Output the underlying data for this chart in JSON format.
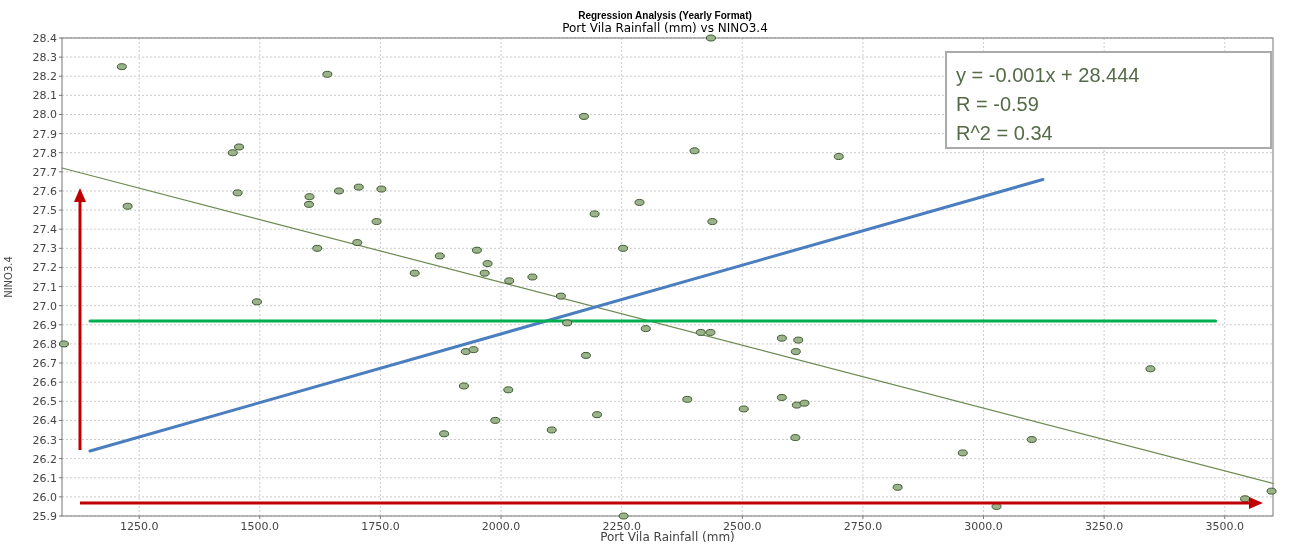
{
  "chart_data": {
    "type": "scatter",
    "title": "Regression Analysis (Yearly Format)",
    "subtitle": "Port Vila Rainfall (mm) vs NINO3.4",
    "xlabel": "Port Vila Rainfall (mm)",
    "ylabel": "NINO3.4",
    "annotations": [
      "y = -0.001x + 28.444",
      "R = -0.59",
      "R^2 = 0.34"
    ],
    "xlim": [
      1090,
      3600
    ],
    "ylim": [
      25.9,
      28.4
    ],
    "xticks": [
      {
        "value": 1250,
        "label": "1250.0"
      },
      {
        "value": 1500,
        "label": "1500.0"
      },
      {
        "value": 1750,
        "label": "1750.0"
      },
      {
        "value": 2000,
        "label": "2000.0"
      },
      {
        "value": 2250,
        "label": "2250.0"
      },
      {
        "value": 2500,
        "label": "2500.0"
      },
      {
        "value": 2750,
        "label": "2750.0"
      },
      {
        "value": 3000,
        "label": "3000.0"
      },
      {
        "value": 3250,
        "label": "3250.0"
      },
      {
        "value": 3500,
        "label": "3500.0"
      }
    ],
    "yticks": [
      25.9,
      {
        "value": 26,
        "label": "26.0"
      },
      26.1,
      26.2,
      26.3,
      26.4,
      26.5,
      26.6,
      26.7,
      26.8,
      26.9,
      {
        "value": 27,
        "label": "27.0"
      },
      27.1,
      27.2,
      27.3,
      27.4,
      27.5,
      27.6,
      27.7,
      27.8,
      27.9,
      {
        "value": 28,
        "label": "28.0"
      },
      28.1,
      28.2,
      28.3,
      28.4
    ],
    "grid": true,
    "marker": "circle",
    "series": [
      {
        "color": "#9bb38a",
        "x": [
          1214,
          1226,
          1444,
          1457,
          1454,
          1603,
          1602,
          1619,
          1640,
          1664,
          1705,
          1702,
          1742,
          1752,
          1873,
          1950,
          1972,
          2172,
          2194,
          2287,
          2253,
          1821,
          1966,
          2017,
          2065,
          1494,
          1094,
          2124,
          2137,
          1927,
          1943,
          2176,
          1923,
          2015,
          1988,
          1882,
          2105,
          2199,
          2254,
          2300,
          2414,
          2434,
          2582,
          2616,
          2611,
          2386,
          2503,
          2582,
          2613,
          2629,
          2610,
          3346,
          3100,
          2957,
          2822,
          3027,
          3542,
          3597,
          2401,
          2700,
          2438,
          2435
        ],
        "values": [
          28.25,
          27.52,
          27.8,
          27.83,
          27.59,
          27.57,
          27.53,
          27.3,
          28.21,
          27.6,
          27.62,
          27.33,
          27.44,
          27.61,
          27.26,
          27.29,
          27.22,
          27.99,
          27.48,
          27.54,
          27.3,
          27.17,
          27.17,
          27.13,
          27.15,
          27.02,
          26.8,
          27.05,
          26.91,
          26.76,
          26.77,
          26.74,
          26.58,
          26.56,
          26.4,
          26.33,
          26.35,
          26.43,
          25.9,
          26.88,
          26.86,
          26.86,
          26.83,
          26.82,
          26.76,
          26.51,
          26.46,
          26.52,
          26.48,
          26.49,
          26.31,
          26.67,
          26.3,
          26.23,
          26.05,
          25.95,
          25.99,
          26.03,
          27.81,
          27.78,
          27.44,
          28.4
        ]
      },
      {
        "type": "line",
        "color": "#6b8a50",
        "marker": "none",
        "x": [
          1090,
          3600
        ],
        "values": [
          27.72,
          26.07
        ]
      },
      {
        "type": "line",
        "color": "#4a7ebf",
        "marker": "none",
        "x": [
          1148,
          3123
        ],
        "values": [
          26.24,
          27.66
        ]
      },
      {
        "type": "line",
        "color": "#00b050",
        "marker": "none",
        "x": [
          1148,
          3481
        ],
        "values": [
          26.92,
          26.92
        ]
      }
    ]
  }
}
